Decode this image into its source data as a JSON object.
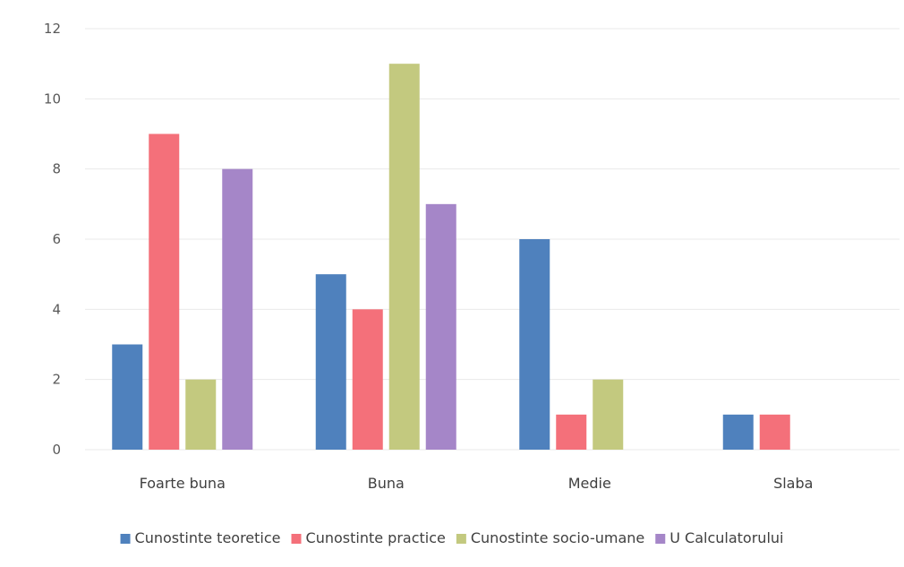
{
  "chart_data": {
    "type": "bar",
    "title": "",
    "xlabel": "",
    "ylabel": "",
    "ylim": [
      0,
      12
    ],
    "yticks": [
      0,
      2,
      4,
      6,
      8,
      10,
      12
    ],
    "grid": true,
    "legend_position": "bottom",
    "categories": [
      "Foarte buna",
      "Buna",
      "Medie",
      "Slaba"
    ],
    "series": [
      {
        "name": "Cunostinte teoretice",
        "color": "#4f81bd",
        "values": [
          3,
          5,
          6,
          1
        ]
      },
      {
        "name": "Cunostinte practice",
        "color": "#f4707a",
        "values": [
          9,
          4,
          1,
          1
        ]
      },
      {
        "name": "Cunostinte socio-umane",
        "color": "#c3c97f",
        "values": [
          2,
          11,
          2,
          0
        ]
      },
      {
        "name": "U Calculatorului",
        "color": "#a586c8",
        "values": [
          8,
          7,
          0,
          0
        ]
      }
    ]
  }
}
